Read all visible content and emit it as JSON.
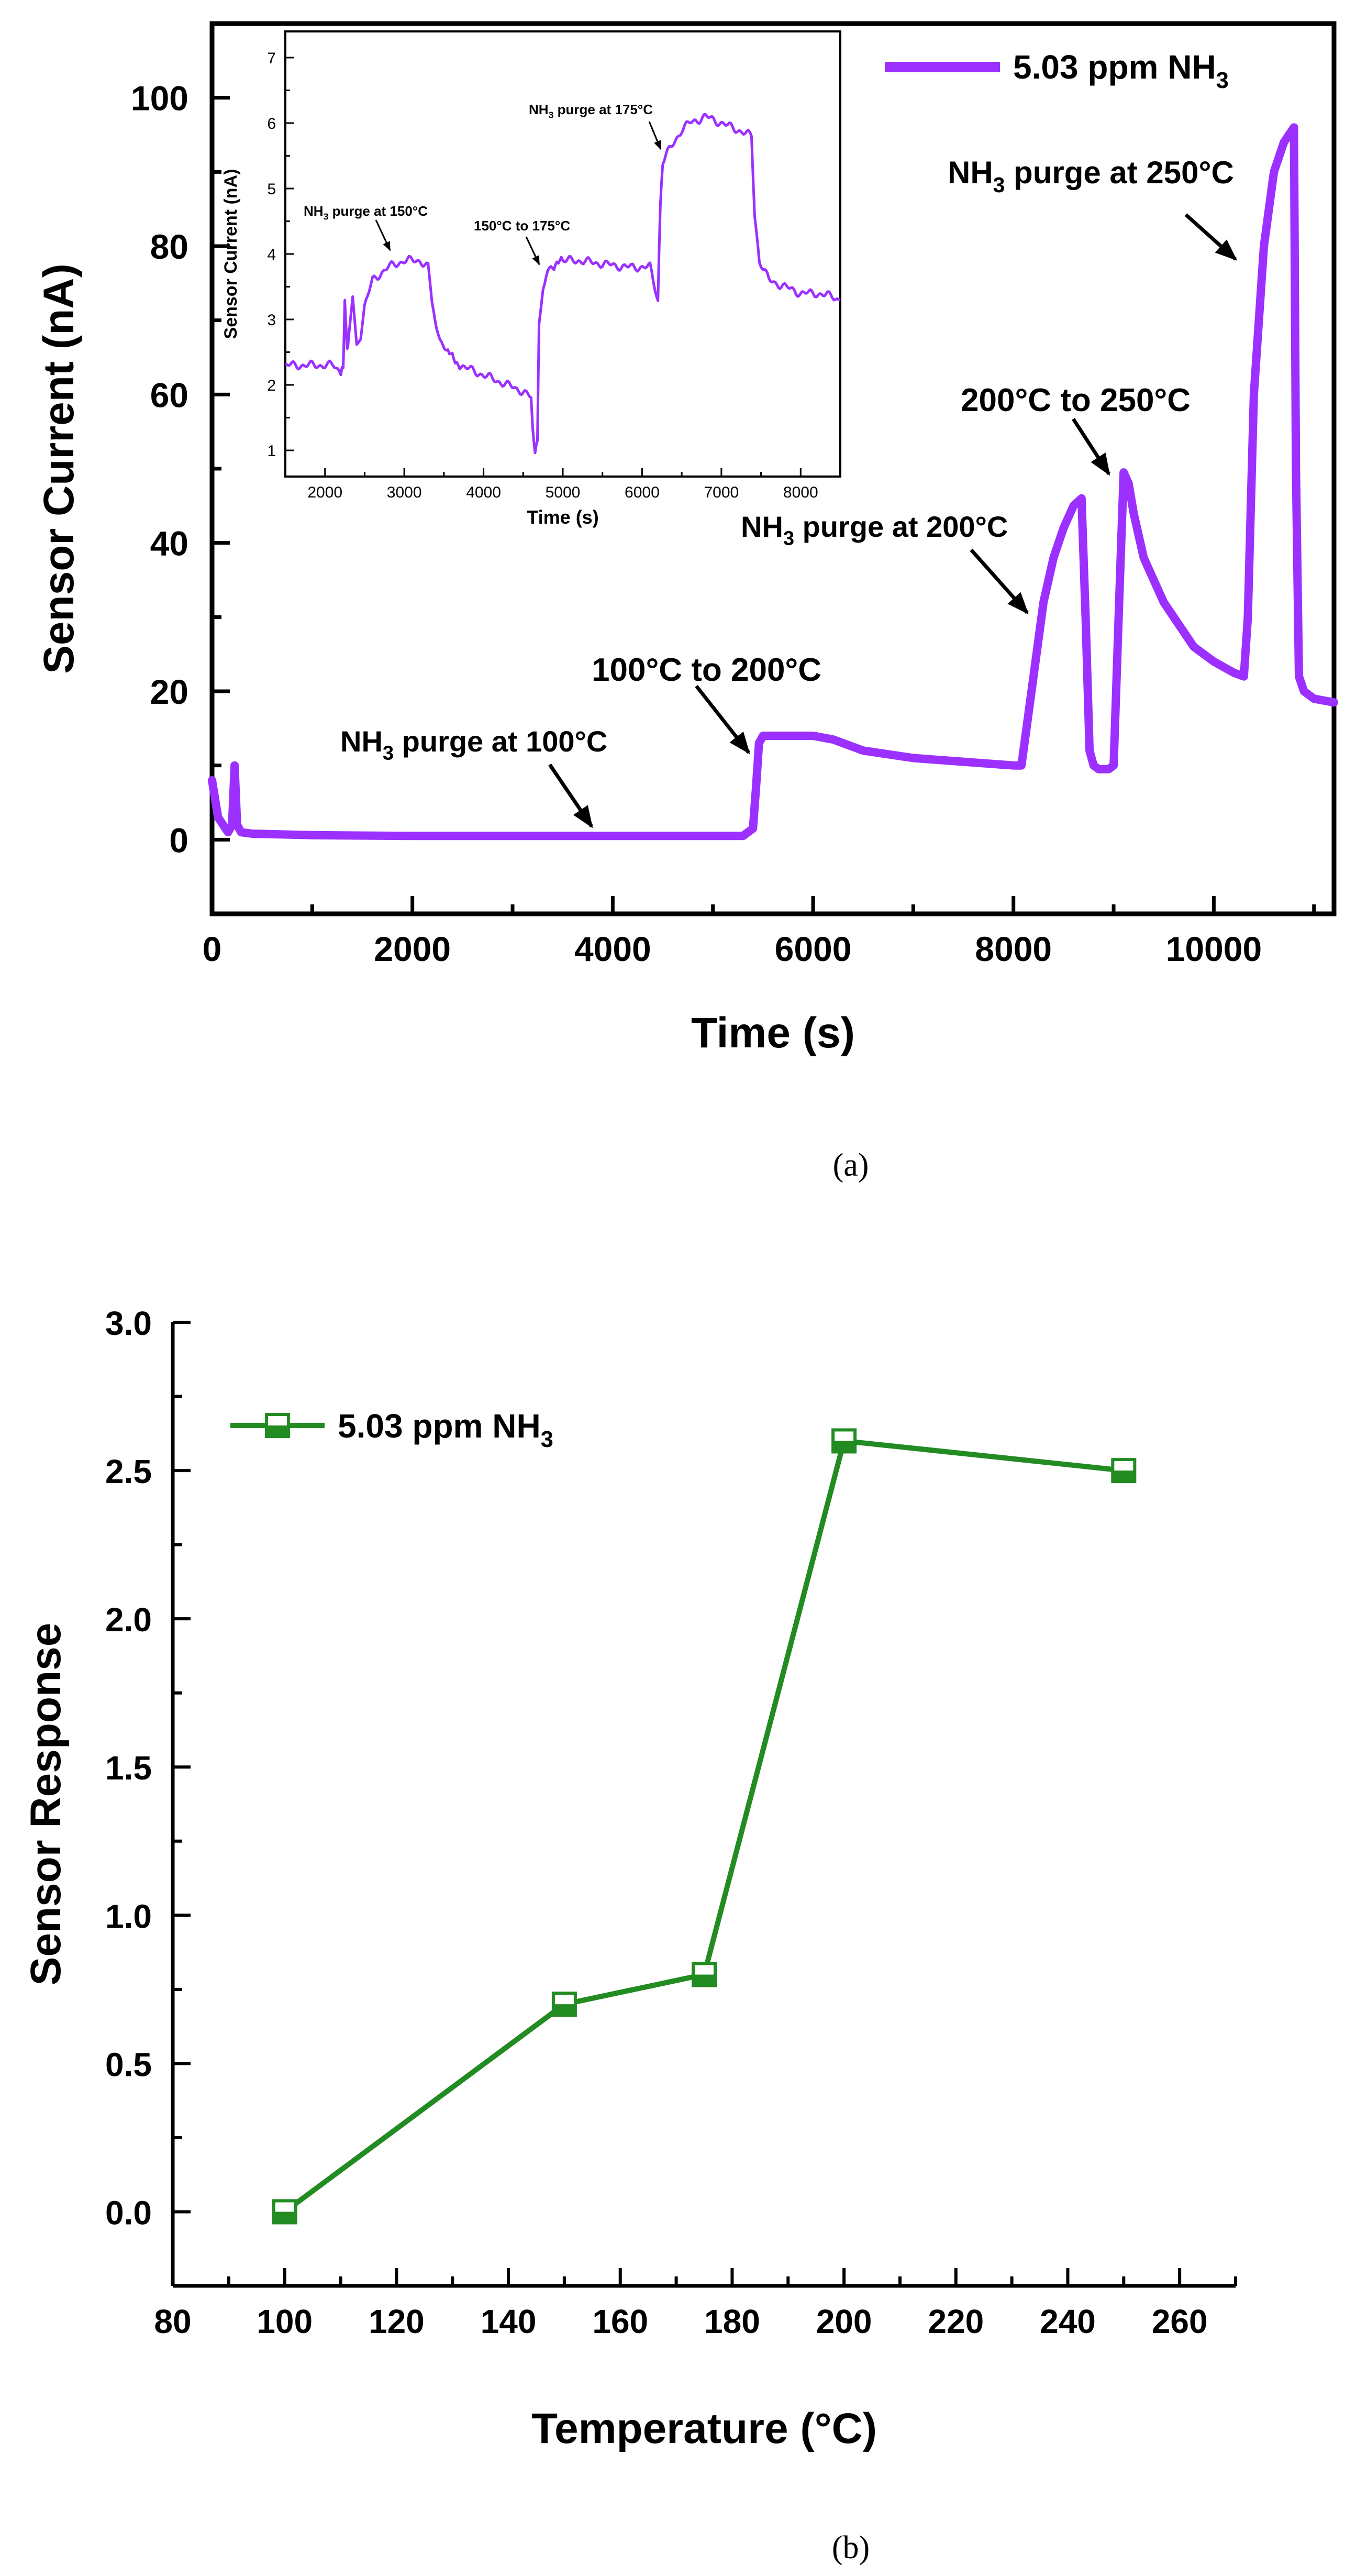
{
  "colors": {
    "panel_a": "#9B30FF",
    "panel_b": "#228B22",
    "axes": "#000000"
  },
  "chart_data": [
    {
      "id": "a",
      "type": "line",
      "caption": "(a)",
      "xlabel": "Time (s)",
      "ylabel": "Sensor Current (nA)",
      "xlim": [
        0,
        11200
      ],
      "ylim": [
        -10,
        110
      ],
      "xticks": [
        0,
        2000,
        4000,
        6000,
        8000,
        10000
      ],
      "yticks": [
        0,
        20,
        40,
        60,
        80,
        100
      ],
      "legend": {
        "position": "top-right",
        "label": "5.03 ppm NH",
        "sub": "3"
      },
      "series": [
        {
          "name": "5.03 ppm NH3",
          "x": [
            0,
            60,
            160,
            200,
            225,
            250,
            290,
            400,
            1000,
            2000,
            3000,
            4000,
            5000,
            5300,
            5400,
            5430,
            5460,
            5500,
            5600,
            6000,
            6200,
            6500,
            7000,
            7500,
            8000,
            8080,
            8120,
            8200,
            8300,
            8400,
            8500,
            8600,
            8680,
            8720,
            8760,
            8800,
            8850,
            8950,
            9000,
            9050,
            9100,
            9150,
            9200,
            9300,
            9500,
            9800,
            10000,
            10200,
            10300,
            10340,
            10400,
            10500,
            10600,
            10700,
            10750,
            10800,
            10820,
            10850,
            10900,
            11000,
            11200
          ],
          "y": [
            8,
            3,
            1,
            2,
            10,
            2,
            1,
            0.8,
            0.6,
            0.5,
            0.5,
            0.5,
            0.5,
            0.5,
            1.5,
            7,
            13,
            14,
            14,
            14,
            13.5,
            12,
            11,
            10.5,
            10,
            10,
            14,
            22,
            32,
            38,
            42,
            45,
            46,
            30,
            12,
            10,
            9.5,
            9.5,
            10,
            30,
            49.5,
            48,
            44,
            38,
            32,
            26,
            24,
            22.5,
            22,
            30,
            60,
            80,
            90,
            94,
            95,
            96,
            50,
            22,
            20,
            19,
            18.5
          ]
        }
      ],
      "annotations": [
        {
          "label": "NH",
          "sub": "3",
          "rest": " purge at 100°C"
        },
        {
          "label": "100°C to 200°C"
        },
        {
          "label": "NH",
          "sub": "3",
          "rest": " purge at 200°C"
        },
        {
          "label": "200°C to 250°C"
        },
        {
          "label": "NH",
          "sub": "3",
          "rest": " purge at 250°C"
        }
      ],
      "inset": {
        "type": "line",
        "xlabel": "Time (s)",
        "ylabel": "Sensor Current (nA)",
        "xlim": [
          1500,
          8500
        ],
        "ylim": [
          0.6,
          7.4
        ],
        "xticks": [
          2000,
          3000,
          4000,
          5000,
          6000,
          7000,
          8000
        ],
        "yticks": [
          1,
          2,
          3,
          4,
          5,
          6,
          7
        ],
        "series": [
          {
            "name": "inset",
            "x": [
              1500,
              1800,
              2100,
              2200,
              2230,
              2250,
              2280,
              2300,
              2350,
              2400,
              2450,
              2500,
              2600,
              2800,
              3000,
              3200,
              3300,
              3350,
              3450,
              3550,
              3700,
              3900,
              4100,
              4300,
              4500,
              4600,
              4620,
              4650,
              4680,
              4700,
              4750,
              4850,
              5000,
              5200,
              5500,
              5800,
              6100,
              6200,
              6230,
              6260,
              6300,
              6400,
              6500,
              6600,
              6800,
              7000,
              7200,
              7380,
              7420,
              7480,
              7600,
              7800,
              8000,
              8200,
              8400,
              8500
            ],
            "y": [
              2.3,
              2.3,
              2.3,
              2.2,
              2.25,
              3.3,
              2.5,
              2.7,
              3.3,
              2.6,
              2.7,
              3.2,
              3.6,
              3.8,
              3.9,
              3.9,
              3.8,
              3.2,
              2.7,
              2.5,
              2.3,
              2.2,
              2.1,
              2.0,
              1.9,
              1.8,
              1.3,
              1.0,
              1.2,
              3.0,
              3.5,
              3.8,
              3.9,
              3.9,
              3.85,
              3.8,
              3.8,
              3.3,
              4.8,
              5.4,
              5.5,
              5.7,
              5.9,
              6.0,
              6.1,
              6.0,
              5.9,
              5.8,
              4.6,
              3.9,
              3.6,
              3.5,
              3.4,
              3.4,
              3.35,
              3.3
            ]
          }
        ],
        "annotations": [
          {
            "label": "NH",
            "sub": "3",
            "rest": " purge at 150°C"
          },
          {
            "label": "150°C to 175°C"
          },
          {
            "label": "NH",
            "sub": "3",
            "rest": " purge at 175°C"
          }
        ]
      }
    },
    {
      "id": "b",
      "type": "line",
      "caption": "(b)",
      "xlabel": "Temperature (°C)",
      "ylabel": "Sensor Response",
      "xlim": [
        80,
        270
      ],
      "ylim": [
        -0.25,
        3.0
      ],
      "xticks": [
        80,
        100,
        120,
        140,
        160,
        180,
        200,
        220,
        240,
        260
      ],
      "yticks": [
        0.0,
        0.5,
        1.0,
        1.5,
        2.0,
        2.5,
        3.0
      ],
      "legend": {
        "position": "top-left",
        "label": "5.03 ppm NH",
        "sub": "3"
      },
      "series": [
        {
          "name": "5.03 ppm NH3",
          "marker": "half-filled-square",
          "x": [
            100,
            150,
            175,
            200,
            250
          ],
          "y": [
            0.0,
            0.7,
            0.8,
            2.6,
            2.5
          ]
        }
      ]
    }
  ]
}
